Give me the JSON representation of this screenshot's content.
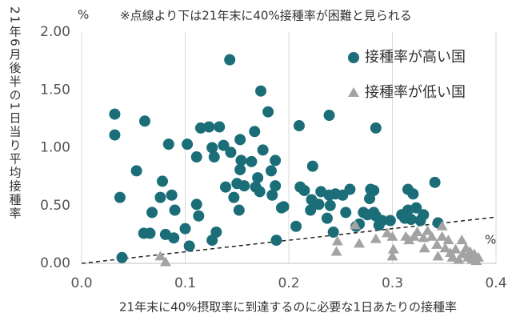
{
  "chart_data": {
    "type": "scatter",
    "title": "※点線より下は21年末に40%接種率が困難と見られる",
    "x_label": "21年末に40%摂取率に到達するのに必要な1日あたりの接種率",
    "y_label": "21年6月後半の1日当り平均接種率",
    "x_unit": "%",
    "y_unit": "%",
    "xlim": [
      0,
      0.4
    ],
    "ylim": [
      0,
      2
    ],
    "xticks": [
      {
        "value": 0,
        "label": "0.0"
      },
      0.1,
      0.2,
      0.3,
      0.4
    ],
    "yticks": [
      {
        "value": 0,
        "label": "0.00"
      },
      {
        "value": 0.5,
        "label": "0.50"
      },
      {
        "value": 1,
        "label": "1.00"
      },
      {
        "value": 1.5,
        "label": "1.50"
      },
      {
        "value": 2,
        "label": "2.00"
      }
    ],
    "grid": "x",
    "legend": "upper right",
    "reference_line": {
      "x": [
        0,
        0.4
      ],
      "y": [
        0,
        0.4
      ]
    },
    "series": [
      {
        "name": "接種率が高い国",
        "color": "#1b6e78",
        "marker": "circle",
        "x": [
          0.032,
          0.032,
          0.037,
          0.039,
          0.053,
          0.061,
          0.06,
          0.066,
          0.068,
          0.076,
          0.078,
          0.081,
          0.084,
          0.087,
          0.09,
          0.089,
          0.1,
          0.102,
          0.104,
          0.111,
          0.111,
          0.113,
          0.115,
          0.123,
          0.126,
          0.128,
          0.13,
          0.126,
          0.133,
          0.137,
          0.139,
          0.143,
          0.144,
          0.147,
          0.15,
          0.153,
          0.153,
          0.154,
          0.152,
          0.157,
          0.164,
          0.167,
          0.168,
          0.17,
          0.173,
          0.175,
          0.172,
          0.18,
          0.183,
          0.184,
          0.187,
          0.187,
          0.193,
          0.188,
          0.195,
          0.207,
          0.21,
          0.211,
          0.215,
          0.221,
          0.223,
          0.222,
          0.229,
          0.231,
          0.237,
          0.239,
          0.24,
          0.239,
          0.243,
          0.245,
          0.252,
          0.255,
          0.259,
          0.265,
          0.268,
          0.272,
          0.276,
          0.278,
          0.279,
          0.282,
          0.284,
          0.282,
          0.284,
          0.287,
          0.29,
          0.298,
          0.309,
          0.312,
          0.315,
          0.315,
          0.318,
          0.32,
          0.323,
          0.327,
          0.33,
          0.341,
          0.344
        ],
        "y": [
          1.29,
          1.11,
          0.57,
          0.05,
          0.8,
          1.23,
          0.26,
          0.26,
          0.44,
          0.57,
          0.71,
          0.25,
          1.03,
          0.59,
          0.46,
          0.22,
          0.3,
          1.03,
          0.15,
          0.92,
          0.51,
          0.41,
          1.17,
          1.18,
          1.0,
          0.92,
          0.27,
          0.2,
          1.18,
          1.02,
          0.66,
          1.76,
          0.96,
          0.57,
          0.69,
          1.07,
          0.81,
          0.89,
          0.46,
          0.67,
          0.88,
          1.14,
          0.66,
          0.74,
          1.49,
          0.98,
          0.62,
          1.31,
          0.8,
          0.59,
          0.89,
          0.67,
          0.48,
          0.2,
          0.49,
          0.32,
          1.19,
          0.66,
          0.63,
          0.46,
          0.84,
          0.55,
          0.51,
          0.62,
          0.39,
          1.28,
          0.5,
          0.59,
          0.27,
          0.6,
          0.59,
          0.44,
          0.64,
          0.32,
          0.34,
          0.44,
          0.42,
          0.56,
          0.64,
          0.63,
          1.17,
          0.44,
          0.41,
          0.33,
          0.37,
          0.37,
          0.42,
          0.39,
          0.64,
          0.46,
          0.38,
          0.6,
          0.48,
          0.37,
          0.42,
          0.7,
          0.35
        ]
      },
      {
        "name": "接種率が低い国",
        "color": "#a3a3a3",
        "marker": "triangle",
        "x": [
          0.076,
          0.081,
          0.247,
          0.246,
          0.264,
          0.268,
          0.284,
          0.295,
          0.3,
          0.301,
          0.3,
          0.313,
          0.316,
          0.321,
          0.324,
          0.33,
          0.331,
          0.334,
          0.338,
          0.343,
          0.344,
          0.348,
          0.348,
          0.351,
          0.354,
          0.356,
          0.358,
          0.361,
          0.364,
          0.367,
          0.368,
          0.371,
          0.373,
          0.375,
          0.377,
          0.379,
          0.381,
          0.383
        ],
        "y": [
          0.06,
          0.01,
          0.19,
          0.1,
          0.33,
          0.17,
          0.21,
          0.26,
          0.23,
          0.12,
          0.06,
          0.23,
          0.2,
          0.23,
          0.27,
          0.22,
          0.13,
          0.28,
          0.23,
          0.16,
          0.06,
          0.32,
          0.23,
          0.13,
          0.2,
          0.09,
          0.05,
          0.12,
          0.03,
          0.2,
          0.08,
          0.13,
          0.05,
          0.1,
          0.03,
          0.08,
          0.02,
          0.05
        ]
      }
    ]
  }
}
